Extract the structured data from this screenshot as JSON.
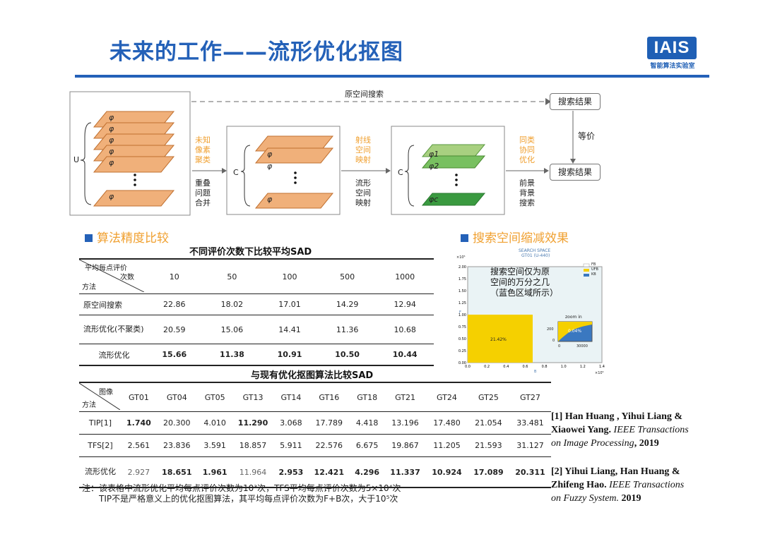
{
  "header": {
    "title": "未来的工作——流形优化抠图",
    "logo_text": "IAIS",
    "logo_sub": "智能算法实验室"
  },
  "flow": {
    "top_label": "原空间搜索",
    "u_label": "U",
    "c_label": "C",
    "phi": "φ",
    "phi1": "φ1",
    "phi2": "φ2",
    "phic": "φc",
    "arrow1_top": [
      "未知",
      "像素",
      "聚类"
    ],
    "arrow1_bottom": [
      "重叠",
      "问题",
      "合并"
    ],
    "arrow2_top": [
      "射线",
      "空间",
      "映射"
    ],
    "arrow2_bottom": [
      "流形",
      "空间",
      "映射"
    ],
    "arrow3_top": [
      "同类",
      "协同",
      "优化"
    ],
    "arrow3_bottom": [
      "前景",
      "背景",
      "搜索"
    ],
    "result1": "搜索结果",
    "result2": "搜索结果",
    "equiv": "等价"
  },
  "section_left": "算法精度比较",
  "section_right": "搜索空间缩减效果",
  "table1": {
    "caption": "不同评价次数下比较平均SAD",
    "corner_top": "平均每点评价",
    "corner_mid": "次数",
    "corner_bottom": "方法",
    "columns": [
      "10",
      "50",
      "100",
      "500",
      "1000"
    ],
    "rows": [
      {
        "name": "原空间搜索",
        "values": [
          "22.86",
          "18.02",
          "17.01",
          "14.29",
          "12.94"
        ]
      },
      {
        "name": "流形优化(不聚类)",
        "values": [
          "20.59",
          "15.06",
          "14.41",
          "11.36",
          "10.68"
        ]
      },
      {
        "name": "流形优化",
        "values": [
          "15.66",
          "11.38",
          "10.91",
          "10.50",
          "10.44"
        ]
      }
    ]
  },
  "table2": {
    "caption": "与现有优化抠图算法比较SAD",
    "corner_top": "图像",
    "corner_bottom": "方法",
    "columns": [
      "GT01",
      "GT04",
      "GT05",
      "GT13",
      "GT14",
      "GT16",
      "GT18",
      "GT21",
      "GT24",
      "GT25",
      "GT27"
    ],
    "rows": [
      {
        "name": "TIP[1]",
        "values": [
          "1.740",
          "20.300",
          "4.010",
          "11.290",
          "3.068",
          "17.789",
          "4.418",
          "13.196",
          "17.480",
          "21.054",
          "33.481"
        ]
      },
      {
        "name": "TFS[2]",
        "values": [
          "2.561",
          "23.836",
          "3.591",
          "18.857",
          "5.911",
          "22.576",
          "6.675",
          "19.867",
          "11.205",
          "21.593",
          "31.127"
        ]
      },
      {
        "name": "流形优化",
        "values": [
          "2.927",
          "18.651",
          "1.961",
          "11.964",
          "2.953",
          "12.421",
          "4.296",
          "11.337",
          "10.924",
          "17.089",
          "20.311"
        ]
      }
    ]
  },
  "note": {
    "line1": "注：该表格中流形优化平均每点评价次数为10³次，TFS平均每点评价次数为5×10⁴次",
    "line2": "TIP不是严格意义上的优化抠图算法，其平均每点评价次数为F+B次，大于10⁵次"
  },
  "chart_text": {
    "title1": "SEARCH SPACE",
    "title2": "GT01 (U-440)",
    "x_exp": "×10⁵",
    "y_exp": "×10⁵",
    "annot1": "搜索空间仅为原",
    "annot2": "空间的万分之几",
    "annot3": "（蓝色区域所示）",
    "legend": [
      "FB",
      "UFB",
      "KB"
    ],
    "zoom": "zoom in",
    "pct_main": "21.42%",
    "pct_zoom": "0.04%",
    "zoom_y_ticks": [
      "200",
      "0"
    ],
    "zoom_x_ticks": [
      "0",
      "30000"
    ],
    "xlabel": "B",
    "ylabel": "F"
  },
  "chart_data": {
    "type": "area",
    "title": "SEARCH SPACE GT01 (U-440)",
    "xlabel": "B",
    "ylabel": "F",
    "x_ticks": [
      "0.0",
      "0.2",
      "0.4",
      "0.6",
      "0.8",
      "1.0",
      "1.2",
      "1.4"
    ],
    "y_ticks": [
      "0.00",
      "0.25",
      "0.50",
      "0.75",
      "1.00",
      "1.25",
      "1.50",
      "1.75",
      "2.00"
    ],
    "xlim": [
      0,
      1.4
    ],
    "ylim": [
      0,
      2.0
    ],
    "regions": [
      {
        "name": "UFB",
        "x_range": [
          0,
          0.7
        ],
        "y_range": [
          0,
          1.0
        ],
        "percent": "21.42%"
      },
      {
        "name": "KB",
        "percent": "0.04%"
      }
    ],
    "legend": [
      "FB",
      "UFB",
      "KB"
    ],
    "legend_colors": [
      "#ffffff",
      "#f5d000",
      "#3a78c0"
    ]
  },
  "refs": {
    "r1_a": "[1] Han Huang , Yihui Liang &",
    "r1_b": "Xiaowei Yang.",
    "r1_c": "IEEE Transactions",
    "r1_d": "on Image Processing",
    "r1_e": ", 2019",
    "r2_a": "[2] Yihui Liang, Han Huang &",
    "r2_b": "Zhifeng Hao.",
    "r2_c": "IEEE Transactions",
    "r2_d": "on Fuzzy System.",
    "r2_e": " 2019"
  }
}
